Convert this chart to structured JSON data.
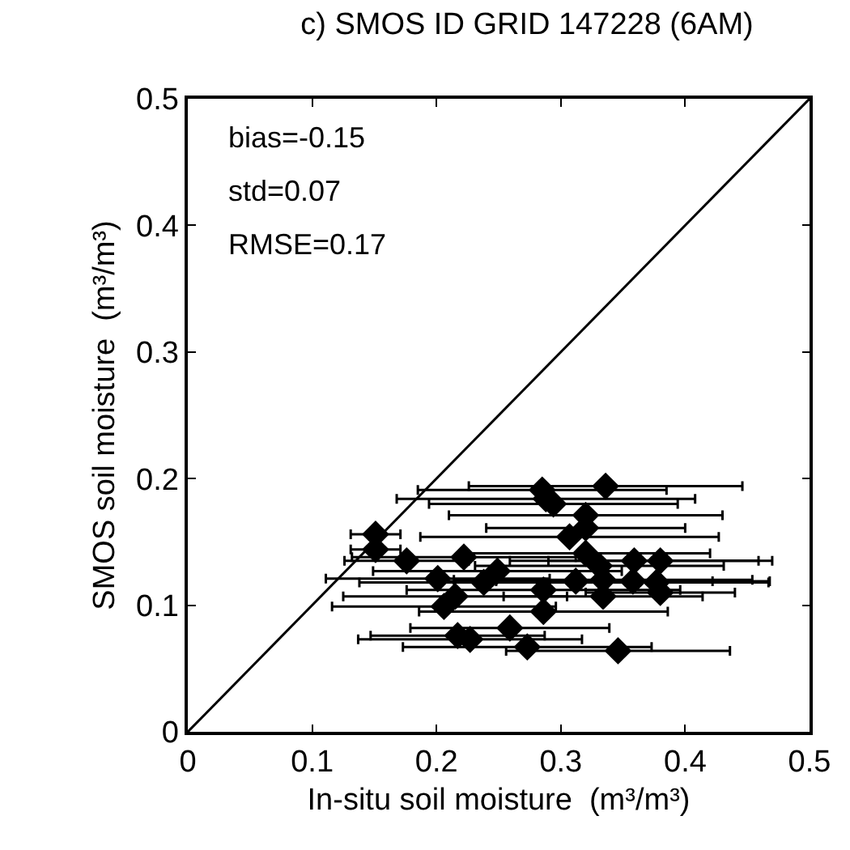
{
  "chart_data": {
    "type": "scatter",
    "title": "c) SMOS ID GRID 147228 (6AM)",
    "xlabel": "In-situ soil moisture  (m³/m³)",
    "ylabel": "SMOS soil moisture  (m³/m³)",
    "xlim": [
      0,
      0.5
    ],
    "ylim": [
      0,
      0.5
    ],
    "xticks": [
      0,
      0.1,
      0.2,
      0.3,
      0.4,
      0.5
    ],
    "yticks": [
      0,
      0.1,
      0.2,
      0.3,
      0.4,
      0.5
    ],
    "marker": "diamond",
    "annotations": [
      "bias=-0.15",
      "std=0.07",
      "RMSE=0.17"
    ],
    "series": [
      {
        "color": "#000000",
        "x": [
          0.285,
          0.336,
          0.288,
          0.294,
          0.32,
          0.32,
          0.307,
          0.151,
          0.151,
          0.176,
          0.222,
          0.32,
          0.359,
          0.38,
          0.331,
          0.201,
          0.238,
          0.249,
          0.312,
          0.334,
          0.358,
          0.377,
          0.286,
          0.215,
          0.206,
          0.334,
          0.286,
          0.38,
          0.217,
          0.227,
          0.259,
          0.273,
          0.346
        ],
        "values": [
          0.191,
          0.194,
          0.184,
          0.18,
          0.171,
          0.161,
          0.154,
          0.156,
          0.144,
          0.135,
          0.138,
          0.141,
          0.135,
          0.135,
          0.131,
          0.121,
          0.118,
          0.127,
          0.119,
          0.12,
          0.119,
          0.118,
          0.112,
          0.107,
          0.099,
          0.107,
          0.095,
          0.11,
          0.076,
          0.073,
          0.082,
          0.067,
          0.064
        ],
        "xerrors": [
          0.1,
          0.11,
          0.12,
          0.1,
          0.11,
          0.08,
          0.12,
          0.02,
          0.02,
          0.05,
          0.09,
          0.1,
          0.1,
          0.09,
          0.1,
          0.09,
          0.1,
          0.1,
          0.11,
          0.12,
          0.11,
          0.09,
          0.11,
          0.09,
          0.09,
          0.08,
          0.1,
          0.06,
          0.07,
          0.09,
          0.08,
          0.1,
          0.09
        ]
      },
      {
        "type": "line",
        "color": "#000000",
        "marker": "none",
        "x": [
          0,
          0.5
        ],
        "values": [
          0,
          0.5
        ]
      }
    ]
  }
}
